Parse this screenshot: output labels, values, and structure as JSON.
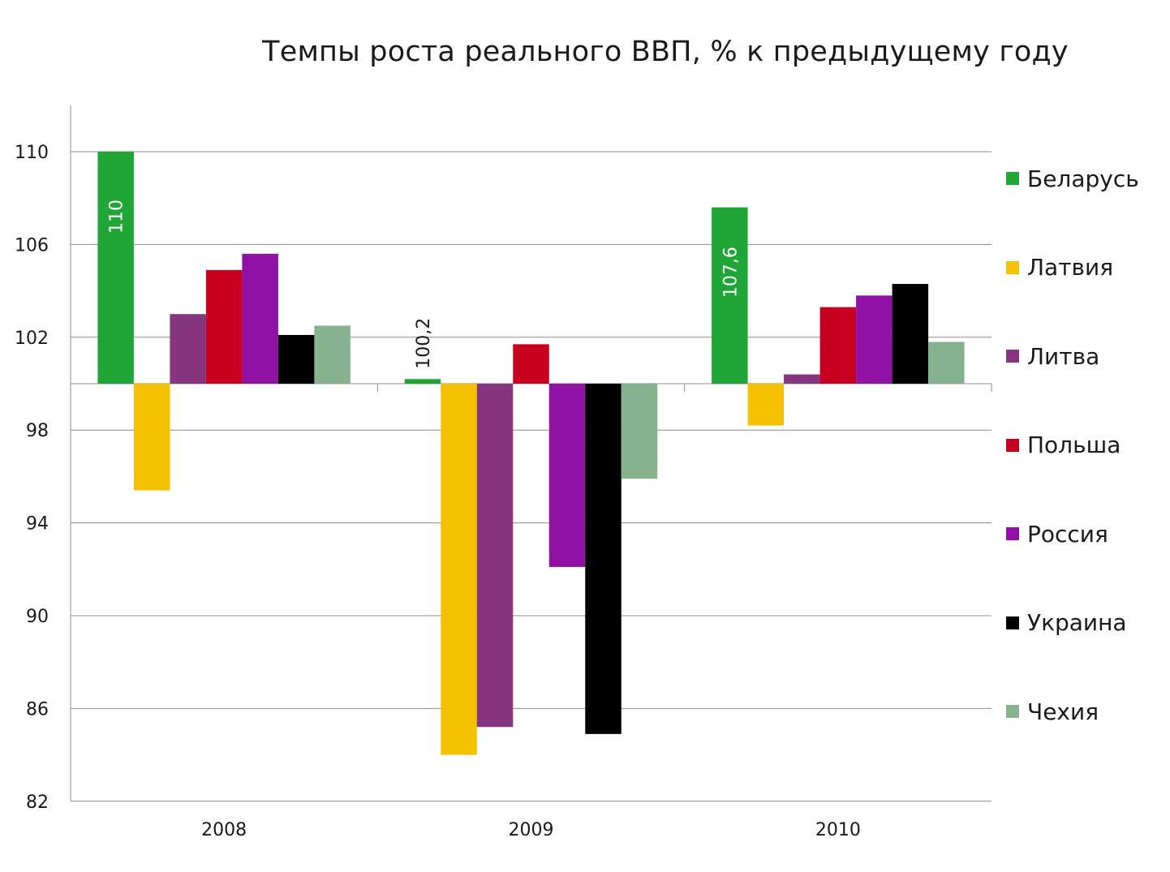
{
  "chart_data": {
    "type": "bar",
    "title": "Темпы роста реального ВВП, % к предыдущему году",
    "xlabel": "",
    "ylabel": "",
    "categories": [
      "2008",
      "2009",
      "2010"
    ],
    "baseline": 100,
    "ylim": [
      82,
      112
    ],
    "yticks": [
      82,
      86,
      90,
      94,
      98,
      102,
      106,
      110
    ],
    "grid": true,
    "legend_position": "right",
    "series": [
      {
        "name": "Беларусь",
        "color": "#1fa637",
        "values": [
          110,
          100.2,
          107.6
        ],
        "labels": [
          "110",
          "100,2",
          "107,6"
        ]
      },
      {
        "name": "Латвия",
        "color": "#f5c000",
        "values": [
          95.4,
          84.0,
          98.2
        ]
      },
      {
        "name": "Литва",
        "color": "#86367f",
        "values": [
          103.0,
          85.2,
          100.4
        ]
      },
      {
        "name": "Польша",
        "color": "#c8001f",
        "values": [
          104.9,
          101.7,
          103.3
        ]
      },
      {
        "name": "Россия",
        "color": "#8f12a4",
        "values": [
          105.6,
          92.1,
          103.8
        ]
      },
      {
        "name": "Украина",
        "color": "#000000",
        "values": [
          102.1,
          84.9,
          104.3
        ]
      },
      {
        "name": "Чехия",
        "color": "#86b38e",
        "values": [
          102.5,
          95.9,
          101.8
        ]
      }
    ]
  }
}
